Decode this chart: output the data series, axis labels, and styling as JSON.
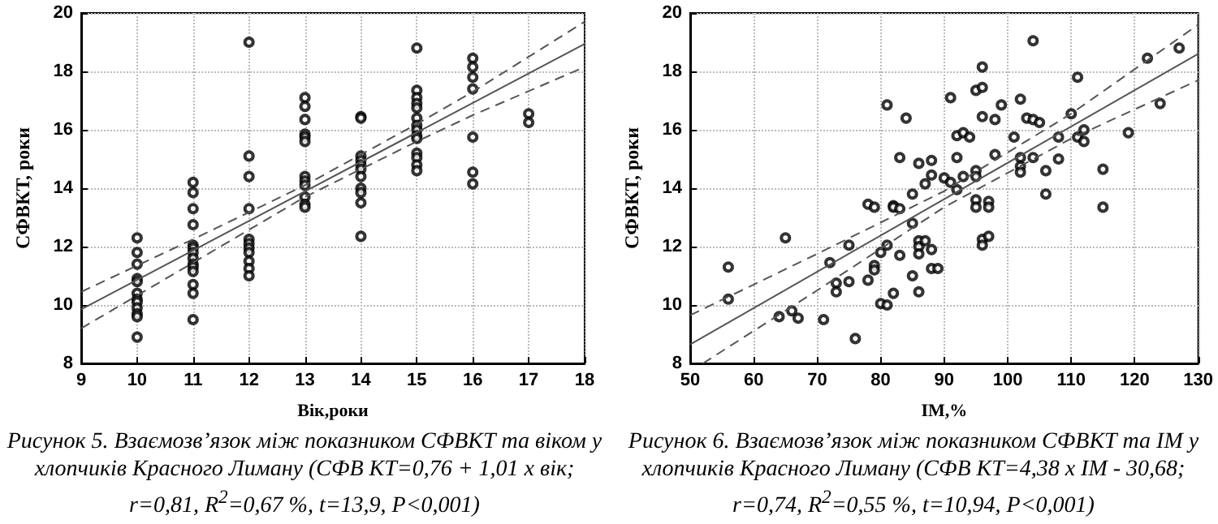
{
  "chart_data": [
    {
      "type": "scatter",
      "xlabel": "Вік,роки",
      "ylabel": "СФВКТ, роки",
      "xlim": [
        9,
        18
      ],
      "xticks": [
        9,
        10,
        11,
        12,
        13,
        14,
        15,
        16,
        17,
        18
      ],
      "ylim": [
        8,
        20
      ],
      "yticks": [
        8,
        10,
        12,
        14,
        16,
        18,
        20
      ],
      "grid": true,
      "annotations": [
        "Рисунок 5. Взаємозв’язок між показником СФВКТ та віком у хлопчиків Красного Лиману (СФВ КТ=0,76 + 1,01 х вік; r=0,81, R$^{2}$=0,67 %, t=13,9, P<0,001)"
      ],
      "series": [
        {
          "marker": "circle",
          "color": "#000000",
          "x": [
            10,
            10,
            10,
            10,
            10,
            10,
            10,
            10,
            10,
            10,
            10,
            10,
            11,
            11,
            11,
            11,
            11,
            11,
            11,
            11,
            11,
            11,
            11,
            11,
            11,
            11,
            12,
            12,
            12,
            12,
            12,
            12,
            12,
            12,
            12,
            12,
            12,
            13,
            13,
            13,
            13,
            13,
            13,
            13,
            13,
            13,
            13,
            13,
            13,
            14,
            14,
            14,
            14,
            14,
            14,
            14,
            14,
            14,
            14,
            14,
            15,
            15,
            15,
            15,
            15,
            15,
            15,
            15,
            15,
            15,
            15,
            15,
            15,
            15,
            16,
            16,
            16,
            16,
            16,
            16,
            16,
            17,
            17
          ],
          "values": [
            12.3,
            11.8,
            11.4,
            10.9,
            10.8,
            10.4,
            10.2,
            10.1,
            9.9,
            9.7,
            9.6,
            8.9,
            14.2,
            13.85,
            13.3,
            12.75,
            12.05,
            11.95,
            11.8,
            11.6,
            11.4,
            11.3,
            11.15,
            10.7,
            10.4,
            9.5,
            19.0,
            15.1,
            14.4,
            13.3,
            12.25,
            12.1,
            11.95,
            11.8,
            11.5,
            11.25,
            11.0,
            17.1,
            16.8,
            16.35,
            15.85,
            15.75,
            15.6,
            14.4,
            14.25,
            14.1,
            13.7,
            13.45,
            13.35,
            16.45,
            16.4,
            15.1,
            14.95,
            14.8,
            14.65,
            14.4,
            14.0,
            13.85,
            13.5,
            12.35,
            18.8,
            17.35,
            17.1,
            16.9,
            16.75,
            16.4,
            16.15,
            16.0,
            15.8,
            15.7,
            15.2,
            15.05,
            14.8,
            14.6,
            18.45,
            18.15,
            17.8,
            17.4,
            15.75,
            14.55,
            14.15,
            16.55,
            16.25
          ]
        },
        {
          "type": "line",
          "marker": "none",
          "color": "#555555",
          "line_style": "solid",
          "x": [
            9,
            18
          ],
          "values": [
            9.85,
            18.94
          ]
        },
        {
          "type": "line",
          "marker": "none",
          "color": "#555555",
          "line_style": "dashed",
          "x": [
            9,
            11,
            13,
            15,
            16,
            18
          ],
          "values": [
            10.45,
            12.25,
            14.1,
            16.2,
            17.3,
            19.7
          ]
        },
        {
          "type": "line",
          "marker": "none",
          "color": "#555555",
          "line_style": "dashed",
          "x": [
            9,
            11,
            13,
            15,
            16,
            18
          ],
          "values": [
            9.2,
            11.45,
            13.7,
            15.6,
            16.5,
            18.15
          ]
        }
      ]
    },
    {
      "type": "scatter",
      "xlabel": "IM,%",
      "ylabel": "СФВКТ, роки",
      "xlim": [
        50,
        130
      ],
      "xticks": [
        50,
        60,
        70,
        80,
        90,
        100,
        110,
        120,
        130
      ],
      "ylim": [
        8,
        20
      ],
      "yticks": [
        8,
        10,
        12,
        14,
        16,
        18,
        20
      ],
      "grid": true,
      "annotations": [
        "Рисунок 6. Взаємозв’язок між показником СФВКТ та IM у хлопчиків Красного Лиману (СФВ КТ=4,38 х IM - 30,68; r=0,74, R$^{2}$=0,55 %, t=10,94, P<0,001)"
      ],
      "series": [
        {
          "marker": "circle",
          "color": "#000000",
          "x": [
            56,
            56,
            65,
            64,
            66,
            67,
            71,
            72,
            75,
            75,
            73,
            73,
            76,
            78,
            79,
            78,
            79,
            79,
            80,
            80,
            81,
            81,
            81,
            82,
            82,
            82,
            83,
            83,
            83,
            84,
            85,
            85,
            85,
            86,
            86,
            86,
            86,
            86,
            87,
            87,
            88,
            88,
            88,
            88,
            89,
            90,
            91,
            91,
            92,
            92,
            92,
            93,
            93,
            94,
            95,
            95,
            95,
            95,
            95,
            96,
            96,
            96,
            96,
            96,
            97,
            97,
            97,
            98,
            98,
            99,
            101,
            102,
            102,
            102,
            102,
            103,
            104,
            104,
            104,
            105,
            106,
            106,
            108,
            108,
            110,
            111,
            111,
            112,
            112,
            115,
            115,
            119,
            122,
            124,
            127
          ],
          "values": [
            11.3,
            10.2,
            12.3,
            9.6,
            9.8,
            9.55,
            9.5,
            11.45,
            12.05,
            10.8,
            10.75,
            10.45,
            8.85,
            13.45,
            13.35,
            10.85,
            11.35,
            11.2,
            11.8,
            10.05,
            10.0,
            16.85,
            12.05,
            13.4,
            13.35,
            10.4,
            15.05,
            13.3,
            11.7,
            16.4,
            13.8,
            12.8,
            11.0,
            14.85,
            12.2,
            12.0,
            11.75,
            10.45,
            14.15,
            12.2,
            14.95,
            14.45,
            11.9,
            11.25,
            11.25,
            14.35,
            17.1,
            14.2,
            15.8,
            15.05,
            13.95,
            15.9,
            14.4,
            15.75,
            17.35,
            14.6,
            14.4,
            13.6,
            13.35,
            18.15,
            17.45,
            16.45,
            12.25,
            12.05,
            13.55,
            13.35,
            12.35,
            16.35,
            15.15,
            16.85,
            15.75,
            17.05,
            15.05,
            14.75,
            14.55,
            16.4,
            19.05,
            16.35,
            15.05,
            16.25,
            14.6,
            13.8,
            15.75,
            15.0,
            16.55,
            17.8,
            15.75,
            16.0,
            15.6,
            14.65,
            13.35,
            15.9,
            18.45,
            16.9,
            18.8
          ]
        },
        {
          "type": "line",
          "marker": "none",
          "color": "#555555",
          "line_style": "solid",
          "x": [
            50,
            130
          ],
          "values": [
            8.65,
            18.6
          ]
        },
        {
          "type": "line",
          "marker": "none",
          "color": "#555555",
          "line_style": "dashed",
          "x": [
            50,
            70,
            90,
            110,
            130
          ],
          "values": [
            9.65,
            11.75,
            13.9,
            16.55,
            19.6
          ]
        },
        {
          "type": "line",
          "marker": "none",
          "color": "#555555",
          "line_style": "dashed",
          "x": [
            52,
            70,
            90,
            110,
            130
          ],
          "values": [
            8.0,
            10.5,
            13.35,
            15.7,
            17.7
          ]
        }
      ]
    }
  ]
}
